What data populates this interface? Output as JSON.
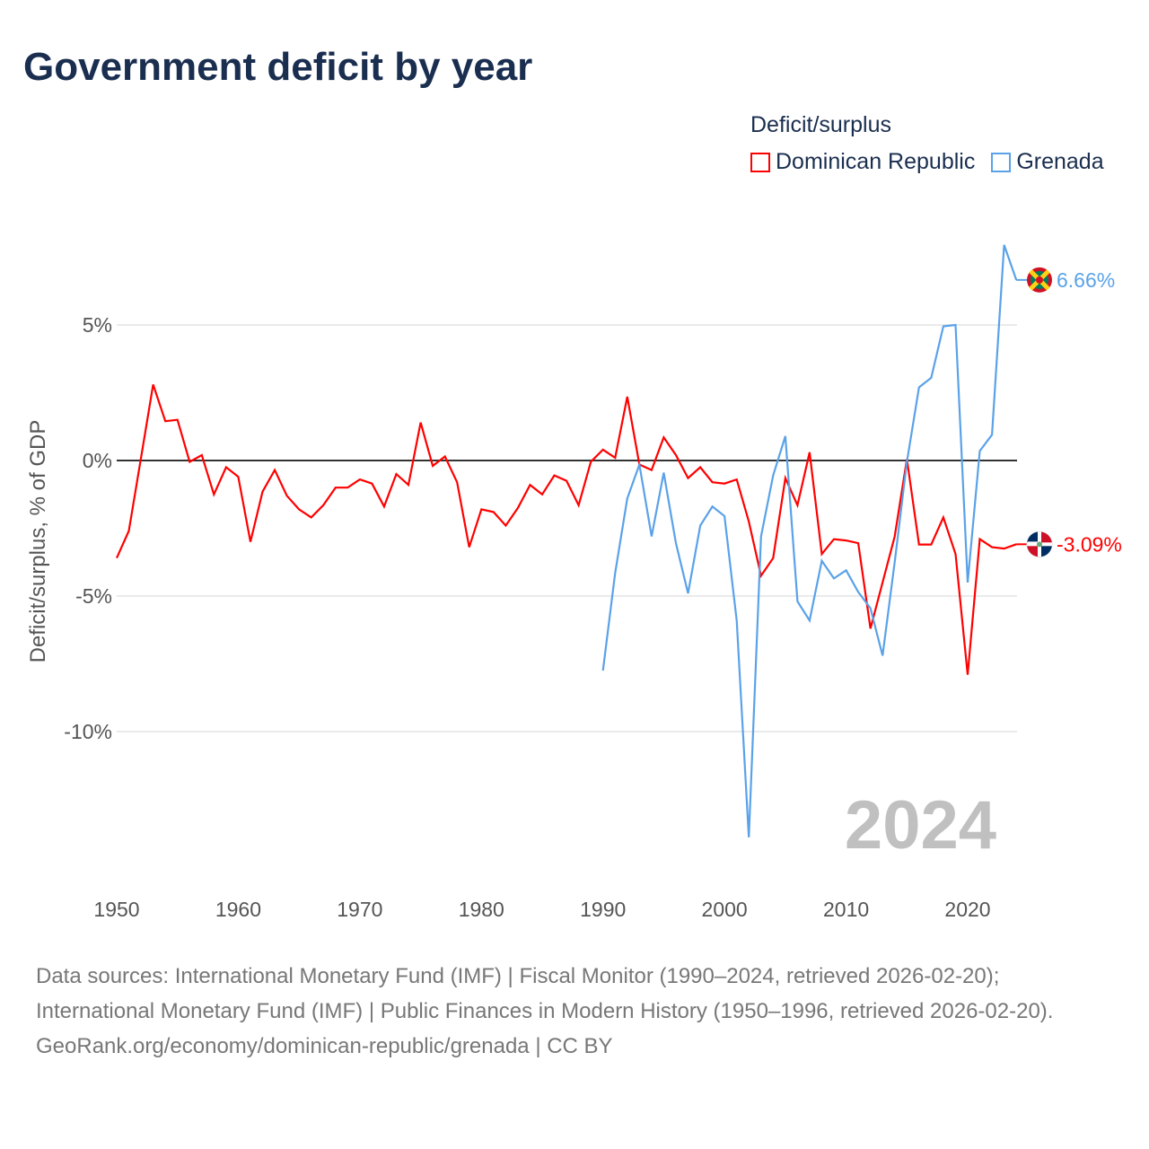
{
  "title": "Government deficit by year",
  "legend": {
    "title": "Deficit/surplus",
    "items": [
      {
        "label": "Dominican Republic",
        "color": "#ff0000"
      },
      {
        "label": "Grenada",
        "color": "#5aa2e8"
      }
    ]
  },
  "year_watermark": "2024",
  "sources": "Data sources: International Monetary Fund (IMF) | Fiscal Monitor (1990–2024, retrieved 2026-02-20); International Monetary Fund (IMF) | Public Finances in Modern History (1950–1996, retrieved 2026-02-20).",
  "footer": "GeoRank.org/economy/dominican-republic/grenada | CC BY",
  "chart_data": {
    "type": "line",
    "title": "Government deficit by year",
    "xlabel": "",
    "ylabel": "Deficit/surplus, % of GDP",
    "xlim": [
      1950,
      2024
    ],
    "ylim": [
      -14.5,
      8.5
    ],
    "x_ticks": [
      1950,
      1960,
      1970,
      1980,
      1990,
      2000,
      2010,
      2020
    ],
    "x_tick_labels": [
      "1950",
      "1960",
      "1970",
      "1980",
      "1990",
      "2000",
      "2010",
      "2020"
    ],
    "y_ticks": [
      5,
      0,
      -5,
      -10
    ],
    "y_tick_labels": [
      "5%",
      "0%",
      "-5%",
      "-10%"
    ],
    "legend_position": "top-right",
    "series": [
      {
        "name": "Dominican Republic",
        "color": "#ff0000",
        "start_year": 1950,
        "end_label": "-3.09%",
        "values": [
          -3.6,
          -2.6,
          0.1,
          2.8,
          1.45,
          1.5,
          -0.05,
          0.2,
          -1.25,
          -0.25,
          -0.6,
          -3.0,
          -1.15,
          -0.35,
          -1.3,
          -1.8,
          -2.1,
          -1.65,
          -1.0,
          -1.0,
          -0.7,
          -0.85,
          -1.7,
          -0.5,
          -0.9,
          1.4,
          -0.2,
          0.15,
          -0.8,
          -3.2,
          -1.8,
          -1.9,
          -2.4,
          -1.75,
          -0.9,
          -1.25,
          -0.55,
          -0.75,
          -1.65,
          -0.05,
          0.4,
          0.1,
          2.35,
          -0.15,
          -0.35,
          0.85,
          0.2,
          -0.65,
          -0.25,
          -0.8,
          -0.85,
          -0.7,
          -2.25,
          -4.25,
          -3.6,
          -0.65,
          -1.65,
          0.3,
          -3.45,
          -2.9,
          -2.95,
          -3.05,
          -6.2,
          -4.5,
          -2.8,
          0.05,
          -3.1,
          -3.1,
          -2.1,
          -3.45,
          -7.9,
          -2.9,
          -3.2,
          -3.25,
          -3.09
        ]
      },
      {
        "name": "Grenada",
        "color": "#5aa2e8",
        "start_year": 1990,
        "end_label": "6.66%",
        "values": [
          -7.75,
          -4.15,
          -1.4,
          -0.15,
          -2.8,
          -0.45,
          -3.05,
          -4.9,
          -2.4,
          -1.7,
          -2.05,
          -5.9,
          -13.9,
          -2.8,
          -0.55,
          0.9,
          -5.2,
          -5.9,
          -3.7,
          -4.35,
          -4.05,
          -4.85,
          -5.45,
          -7.2,
          -3.75,
          -0.05,
          2.7,
          3.05,
          4.95,
          5.0,
          -4.5,
          0.35,
          0.95,
          7.95,
          6.66
        ]
      }
    ]
  }
}
